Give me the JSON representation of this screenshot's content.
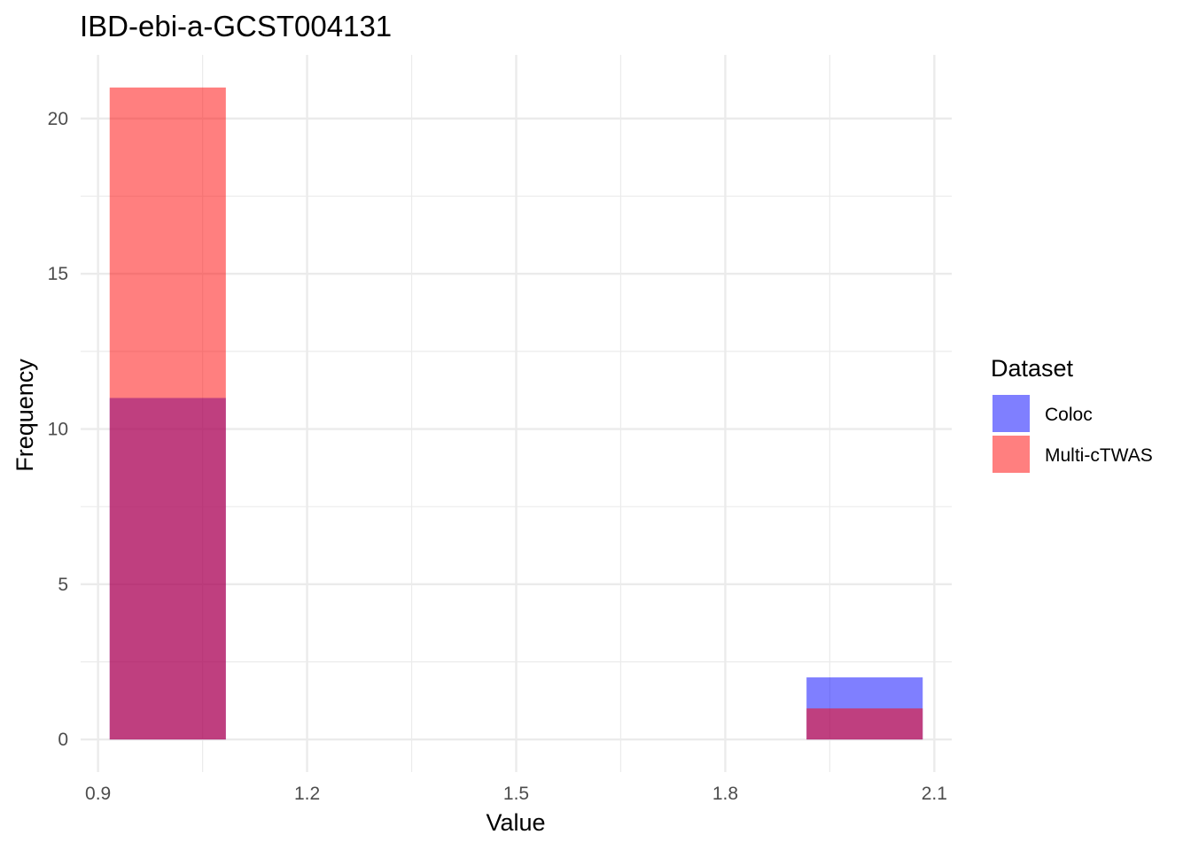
{
  "chart_data": {
    "type": "bar",
    "title": "IBD-ebi-a-GCST004131",
    "xlabel": "Value",
    "ylabel": "Frequency",
    "xlim": [
      0.875,
      2.125
    ],
    "ylim": [
      -1.05,
      22.05
    ],
    "x_ticks": [
      "0.9",
      "1.2",
      "1.5",
      "1.8",
      "2.1"
    ],
    "x_tick_values": [
      0.9,
      1.2,
      1.5,
      1.8,
      2.1
    ],
    "y_ticks": [
      "0",
      "5",
      "10",
      "15",
      "20"
    ],
    "y_tick_values": [
      0,
      5,
      10,
      15,
      20
    ],
    "bin_width": 0.1667,
    "grid": true,
    "legend_position": "right",
    "legend_title": "Dataset",
    "series": [
      {
        "name": "Coloc",
        "color": "#0000FF",
        "opacity": 0.5,
        "bins": [
          {
            "x": 1.0,
            "value": 11
          },
          {
            "x": 2.0,
            "value": 2
          }
        ]
      },
      {
        "name": "Multi-cTWAS",
        "color": "#FF0000",
        "opacity": 0.5,
        "bins": [
          {
            "x": 1.0,
            "value": 21
          },
          {
            "x": 2.0,
            "value": 1
          }
        ]
      }
    ]
  }
}
